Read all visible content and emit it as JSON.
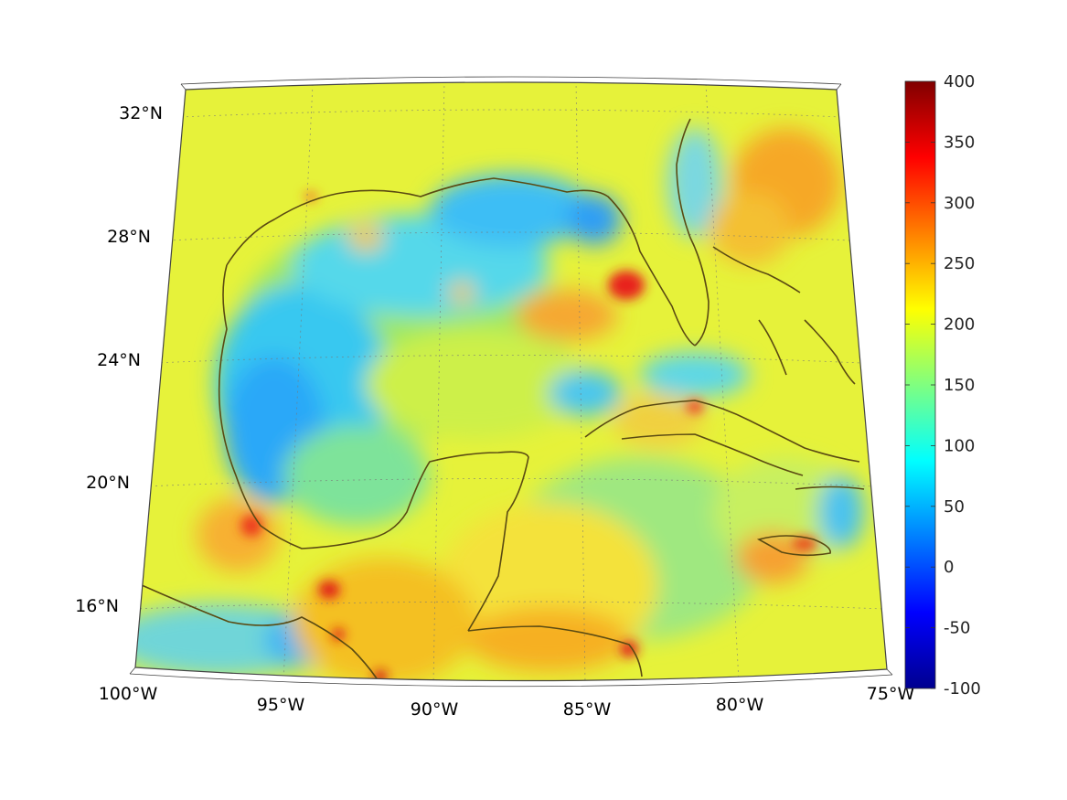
{
  "map": {
    "projection": "conic",
    "coastline_color": "#5a4a12",
    "grid": true,
    "lon_labels": [
      "100°W",
      "95°W",
      "90°W",
      "85°W",
      "80°W",
      "75°W"
    ],
    "lat_labels": [
      "32°N",
      "28°N",
      "24°N",
      "20°N",
      "16°N"
    ]
  },
  "colorbar": {
    "colormap": "jet",
    "range": [
      -100,
      400
    ],
    "tick_labels": [
      "400",
      "350",
      "300",
      "250",
      "200",
      "150",
      "100",
      "50",
      "0",
      "-50",
      "-100"
    ]
  }
}
